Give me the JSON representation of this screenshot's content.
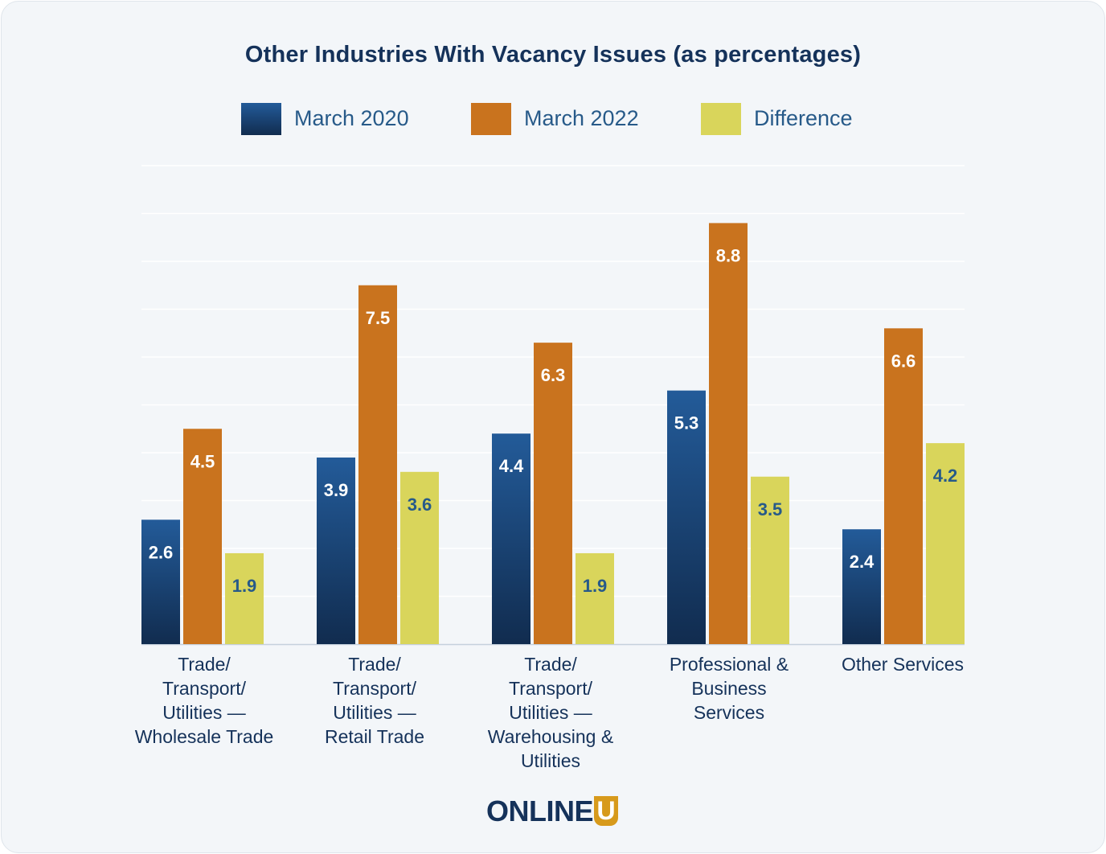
{
  "chart_data": {
    "type": "bar",
    "title": "Other Industries With Vacancy Issues (as percentages)",
    "categories": [
      [
        "Trade/",
        "Transport/",
        "Utilities —",
        "Wholesale Trade"
      ],
      [
        "Trade/",
        "Transport/",
        "Utilities —",
        "Retail Trade"
      ],
      [
        "Trade/",
        "Transport/",
        "Utilities —",
        "Warehousing &",
        "Utilities"
      ],
      [
        "Professional &",
        "Business",
        "Services"
      ],
      [
        "Other Services"
      ]
    ],
    "series": [
      {
        "name": "March 2020",
        "values": [
          2.6,
          3.9,
          4.4,
          5.3,
          2.4
        ]
      },
      {
        "name": "March 2022",
        "values": [
          4.5,
          7.5,
          6.3,
          8.8,
          6.6
        ]
      },
      {
        "name": "Difference",
        "values": [
          1.9,
          3.6,
          1.9,
          3.5,
          4.2
        ]
      }
    ],
    "ylim": [
      0,
      10
    ],
    "grid": true,
    "legend": "top-center",
    "colors": {
      "March 2020": [
        "#235b99",
        "#112c4f"
      ],
      "March 2022": "#c9731e",
      "Difference": "#d9d55b"
    },
    "label_colors": {
      "March 2020": "#ffffff",
      "March 2022": "#ffffff",
      "Difference": "#275a89"
    }
  },
  "brand": {
    "logo_text": "ONLINE",
    "logo_u": "U"
  }
}
